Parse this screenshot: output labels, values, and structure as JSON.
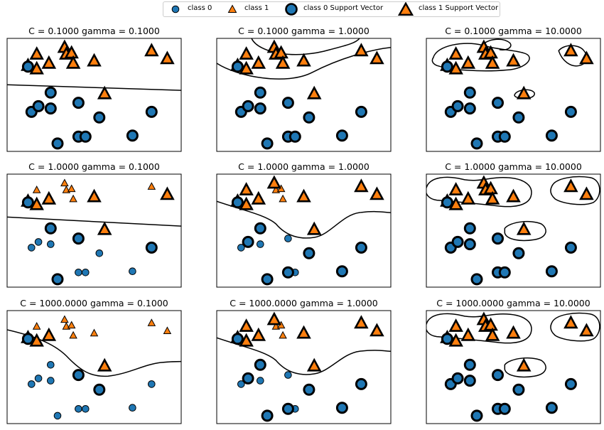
{
  "legend": {
    "items": [
      {
        "label": "class 0",
        "marker": "circle",
        "size": "small",
        "color": "#1f77b4"
      },
      {
        "label": "class 1",
        "marker": "triangle",
        "size": "small",
        "color": "#ff7f0e"
      },
      {
        "label": "class 0 Support Vector",
        "marker": "circle",
        "size": "large",
        "color": "#1f77b4"
      },
      {
        "label": "class 1 Support Vector",
        "marker": "triangle",
        "size": "large",
        "color": "#ff7f0e"
      }
    ],
    "placement": "top-center"
  },
  "colors": {
    "class0": "#1f77b4",
    "class1": "#ff7f0e",
    "edge": "#000000",
    "boundary": "#000000"
  },
  "chart_data": {
    "type": "scatter",
    "layout": {
      "rows": 3,
      "cols": 3
    },
    "xlim": [
      0,
      1
    ],
    "ylim": [
      0,
      1
    ],
    "grid": false,
    "points": [
      {
        "x": 0.12,
        "y": 0.76,
        "cls": 1
      },
      {
        "x": 0.17,
        "y": 0.73,
        "cls": 1
      },
      {
        "x": 0.17,
        "y": 0.86,
        "cls": 1
      },
      {
        "x": 0.24,
        "y": 0.78,
        "cls": 1
      },
      {
        "x": 0.33,
        "y": 0.92,
        "cls": 1
      },
      {
        "x": 0.34,
        "y": 0.86,
        "cls": 1
      },
      {
        "x": 0.37,
        "y": 0.87,
        "cls": 1
      },
      {
        "x": 0.38,
        "y": 0.78,
        "cls": 1
      },
      {
        "x": 0.5,
        "y": 0.8,
        "cls": 1
      },
      {
        "x": 0.56,
        "y": 0.51,
        "cls": 1
      },
      {
        "x": 0.83,
        "y": 0.89,
        "cls": 1
      },
      {
        "x": 0.92,
        "y": 0.82,
        "cls": 1
      },
      {
        "x": 0.12,
        "y": 0.75,
        "cls": 0
      },
      {
        "x": 0.14,
        "y": 0.35,
        "cls": 0
      },
      {
        "x": 0.18,
        "y": 0.4,
        "cls": 0
      },
      {
        "x": 0.25,
        "y": 0.38,
        "cls": 0
      },
      {
        "x": 0.25,
        "y": 0.52,
        "cls": 0
      },
      {
        "x": 0.29,
        "y": 0.07,
        "cls": 0
      },
      {
        "x": 0.41,
        "y": 0.43,
        "cls": 0
      },
      {
        "x": 0.41,
        "y": 0.13,
        "cls": 0
      },
      {
        "x": 0.45,
        "y": 0.13,
        "cls": 0
      },
      {
        "x": 0.53,
        "y": 0.3,
        "cls": 0
      },
      {
        "x": 0.72,
        "y": 0.14,
        "cls": 0
      },
      {
        "x": 0.83,
        "y": 0.35,
        "cls": 0
      }
    ],
    "panels": [
      {
        "title": "C = 0.1000 gamma = 0.1000",
        "C": 0.1,
        "gamma": 0.1,
        "support_vectors": [
          0,
          1,
          2,
          3,
          4,
          5,
          6,
          7,
          8,
          9,
          10,
          11,
          12,
          13,
          14,
          15,
          16,
          17,
          18,
          19,
          20,
          21,
          22,
          23
        ]
      },
      {
        "title": "C = 0.1000 gamma = 1.0000",
        "C": 0.1,
        "gamma": 1.0,
        "support_vectors": [
          0,
          1,
          2,
          3,
          4,
          5,
          6,
          7,
          8,
          9,
          10,
          11,
          12,
          13,
          14,
          15,
          16,
          17,
          18,
          19,
          20,
          21,
          22,
          23
        ]
      },
      {
        "title": "C = 0.1000 gamma = 10.0000",
        "C": 0.1,
        "gamma": 10.0,
        "support_vectors": [
          0,
          1,
          2,
          3,
          4,
          5,
          6,
          7,
          8,
          9,
          10,
          11,
          12,
          13,
          14,
          15,
          16,
          17,
          18,
          19,
          20,
          21,
          22,
          23
        ]
      },
      {
        "title": "C = 1.0000 gamma = 0.1000",
        "C": 1.0,
        "gamma": 0.1,
        "support_vectors": [
          0,
          1,
          3,
          8,
          9,
          11,
          12,
          16,
          17,
          18,
          23
        ]
      },
      {
        "title": "C = 1.0000 gamma = 1.0000",
        "C": 1.0,
        "gamma": 1.0,
        "support_vectors": [
          0,
          1,
          2,
          3,
          4,
          8,
          9,
          10,
          11,
          12,
          14,
          16,
          17,
          19,
          21,
          22,
          23
        ]
      },
      {
        "title": "C = 1.0000 gamma = 10.0000",
        "C": 1.0,
        "gamma": 10.0,
        "support_vectors": [
          0,
          1,
          2,
          3,
          4,
          5,
          6,
          7,
          8,
          9,
          10,
          11,
          12,
          13,
          14,
          15,
          16,
          17,
          18,
          19,
          20,
          21,
          22,
          23
        ]
      },
      {
        "title": "C = 1000.0000 gamma = 0.1000",
        "C": 1000.0,
        "gamma": 0.1,
        "support_vectors": [
          0,
          1,
          3,
          9,
          12,
          18,
          21
        ]
      },
      {
        "title": "C = 1000.0000 gamma = 1.0000",
        "C": 1000.0,
        "gamma": 1.0,
        "support_vectors": [
          0,
          1,
          2,
          3,
          4,
          8,
          9,
          10,
          11,
          12,
          14,
          16,
          17,
          19,
          21,
          22,
          23
        ]
      },
      {
        "title": "C = 1000.0000 gamma = 10.0000",
        "C": 1000.0,
        "gamma": 10.0,
        "support_vectors": [
          0,
          1,
          2,
          3,
          4,
          5,
          6,
          7,
          8,
          9,
          10,
          11,
          12,
          13,
          14,
          15,
          16,
          17,
          18,
          19,
          20,
          21,
          22,
          23
        ]
      }
    ]
  }
}
